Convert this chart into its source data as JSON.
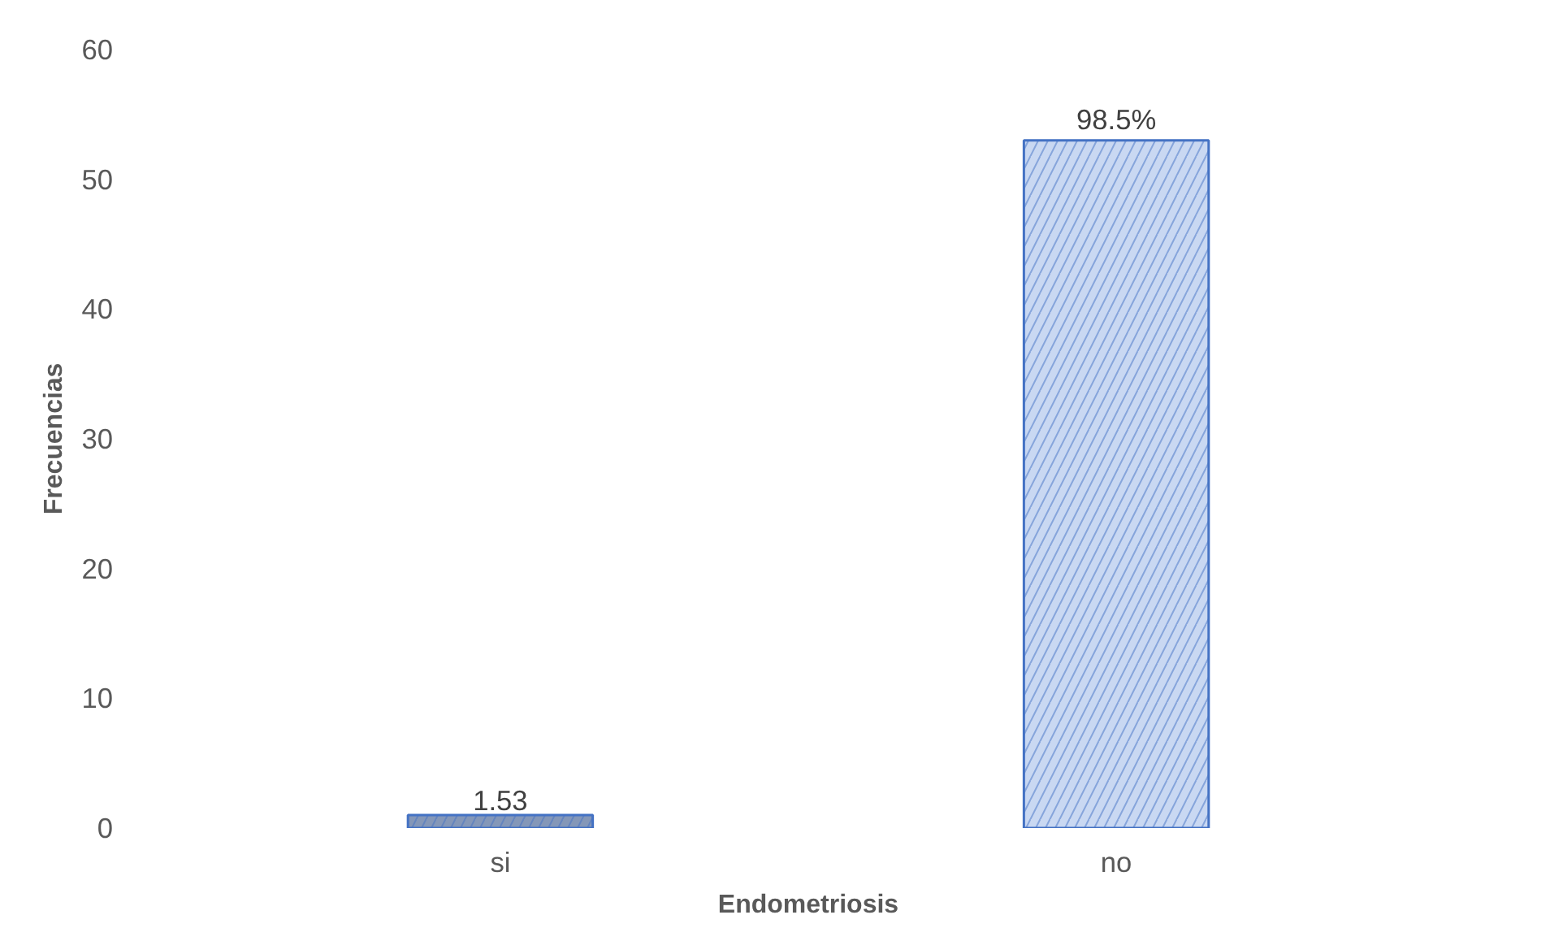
{
  "chart_data": {
    "type": "bar",
    "xlabel": "Endometriosis",
    "ylabel": "Frecuencias",
    "categories": [
      "si",
      "no"
    ],
    "values": [
      1,
      53
    ],
    "colors": [
      "#8497b8",
      "#c9d8f2"
    ],
    "annotations": [
      {
        "text": "1.53",
        "x": "si",
        "y": 1
      },
      {
        "text": "98.5%",
        "x": "no",
        "y": 53
      }
    ],
    "ylim": [
      0,
      60
    ],
    "yticks": [
      0,
      10,
      20,
      30,
      40,
      50,
      60
    ],
    "grid": false
  }
}
